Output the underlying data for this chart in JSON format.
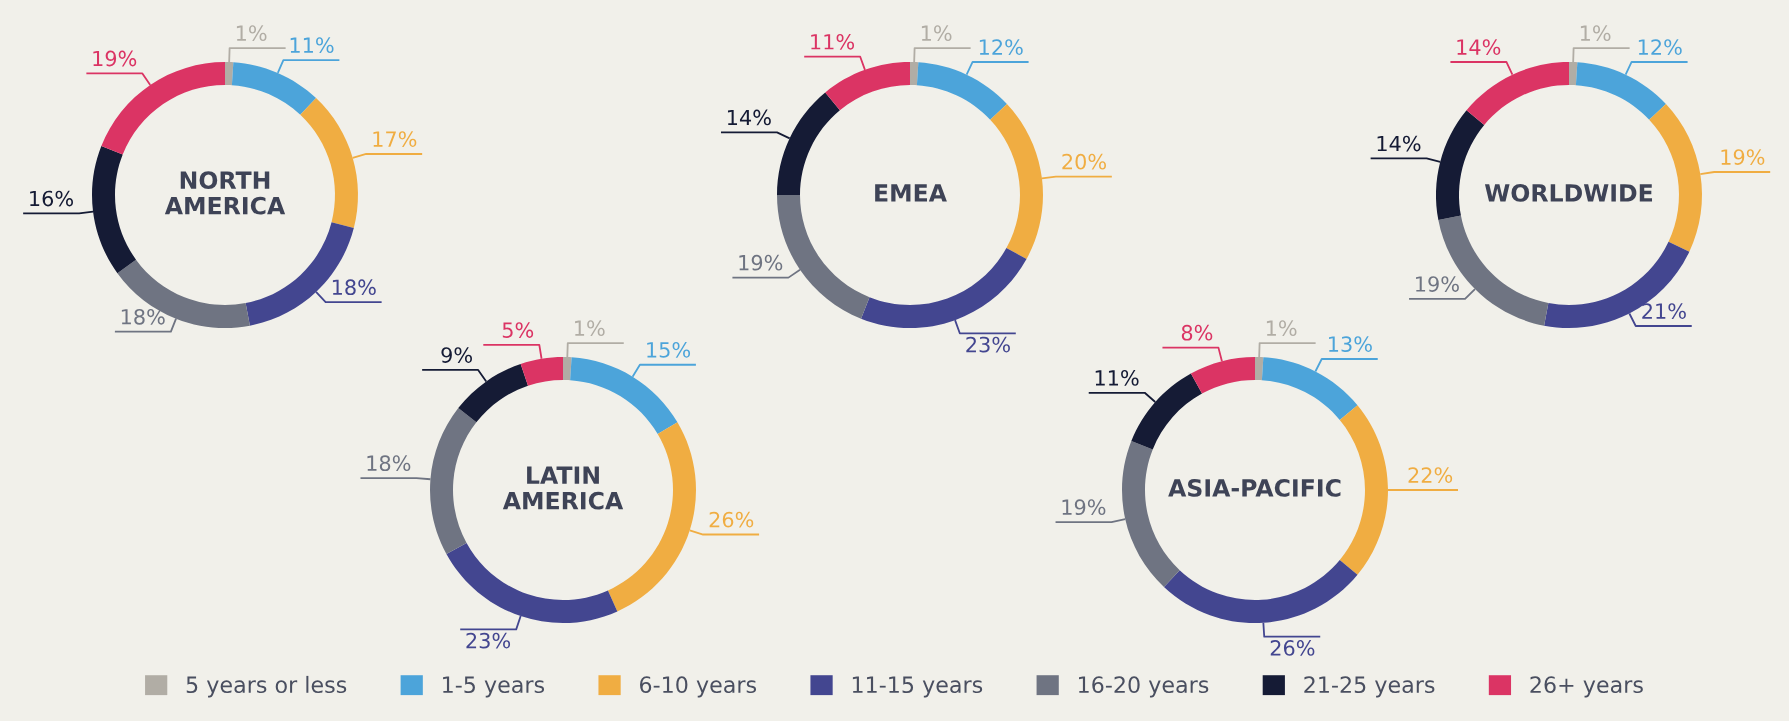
{
  "chart_data": [
    {
      "type": "donut",
      "title": "NORTH\nAMERICA",
      "categories": [
        "5 years or less",
        "1-5 years",
        "6-10 years",
        "11-15 years",
        "16-20 years",
        "21-25 years",
        "26+ years"
      ],
      "values": [
        1,
        11,
        17,
        18,
        18,
        16,
        19
      ],
      "colors": [
        "#b1ada5",
        "#4ca4da",
        "#f0ad42",
        "#434690",
        "#6f7482",
        "#151b35",
        "#db3464"
      ],
      "value_labels": [
        "1%",
        "11%",
        "17%",
        "18%",
        "18%",
        "16%",
        "19%"
      ],
      "legend": "bottom"
    },
    {
      "type": "donut",
      "title": "EMEA",
      "categories": [
        null,
        null,
        null,
        null,
        null,
        null,
        null
      ],
      "values": [
        1,
        12,
        20,
        23,
        19,
        14,
        11
      ],
      "colors": [
        "#b1ada5",
        "#4ca4da",
        "#f0ad42",
        "#434690",
        "#6f7482",
        "#151b35",
        "#db3464"
      ],
      "value_labels": [
        "1%",
        "12%",
        "20%",
        "23%",
        "19%",
        "14%",
        "11%"
      ]
    },
    {
      "type": "donut",
      "title": "WORLDWIDE",
      "categories": [
        null,
        null,
        null,
        null,
        null,
        null,
        null
      ],
      "values": [
        1,
        12,
        19,
        21,
        19,
        14,
        14
      ],
      "colors": [
        "#b1ada5",
        "#4ca4da",
        "#f0ad42",
        "#434690",
        "#6f7482",
        "#151b35",
        "#db3464"
      ],
      "value_labels": [
        "1%",
        "12%",
        "19%",
        "21%",
        "19%",
        "14%",
        "14%"
      ]
    },
    {
      "type": "donut",
      "title": "LATIN\nAMERICA",
      "categories": [
        null,
        null,
        null,
        null,
        null,
        null,
        null
      ],
      "values": [
        1,
        15,
        26,
        23,
        18,
        9,
        5
      ],
      "colors": [
        "#b1ada5",
        "#4ca4da",
        "#f0ad42",
        "#434690",
        "#6f7482",
        "#151b35",
        "#db3464"
      ],
      "value_labels": [
        "1%",
        "15%",
        "26%",
        "23%",
        "18%",
        "9%",
        "5%"
      ]
    },
    {
      "type": "donut",
      "title": "ASIA-PACIFIC",
      "categories": [
        null,
        null,
        null,
        null,
        null,
        null,
        null
      ],
      "values": [
        1,
        13,
        22,
        26,
        19,
        11,
        8
      ],
      "colors": [
        "#b1ada5",
        "#4ca4da",
        "#f0ad42",
        "#434690",
        "#6f7482",
        "#151b35",
        "#db3464"
      ],
      "value_labels": [
        "1%",
        "13%",
        "22%",
        "26%",
        "19%",
        "11%",
        "8%"
      ]
    }
  ]
}
